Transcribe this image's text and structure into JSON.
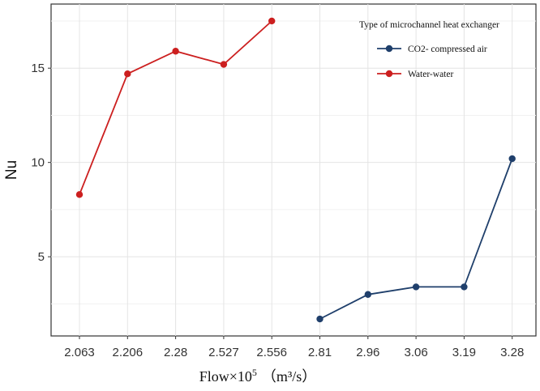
{
  "chart_data": {
    "type": "line",
    "title": "",
    "xlabel": "Flow×10",
    "xlabel_superscript": "5",
    "xlabel_units": "（m³/s）",
    "ylabel": "Nu",
    "categories": [
      "2.063",
      "2.206",
      "2.28",
      "2.527",
      "2.556",
      "2.81",
      "2.96",
      "3.06",
      "3.19",
      "3.28"
    ],
    "ylim": [
      0.8,
      18.4
    ],
    "yticks": [
      5,
      10,
      15
    ],
    "grid": true,
    "legend": {
      "title": "Type of microchannel heat exchanger",
      "position": "top-right"
    },
    "series": [
      {
        "name": "CO2- compressed air",
        "color": "#1f3f6b",
        "values": [
          null,
          null,
          null,
          null,
          null,
          1.7,
          3.0,
          3.4,
          3.4,
          10.2
        ]
      },
      {
        "name": "Water-water",
        "color": "#cc1f1f",
        "values": [
          8.3,
          14.7,
          15.9,
          15.2,
          17.5,
          null,
          null,
          null,
          null,
          null
        ]
      }
    ]
  }
}
